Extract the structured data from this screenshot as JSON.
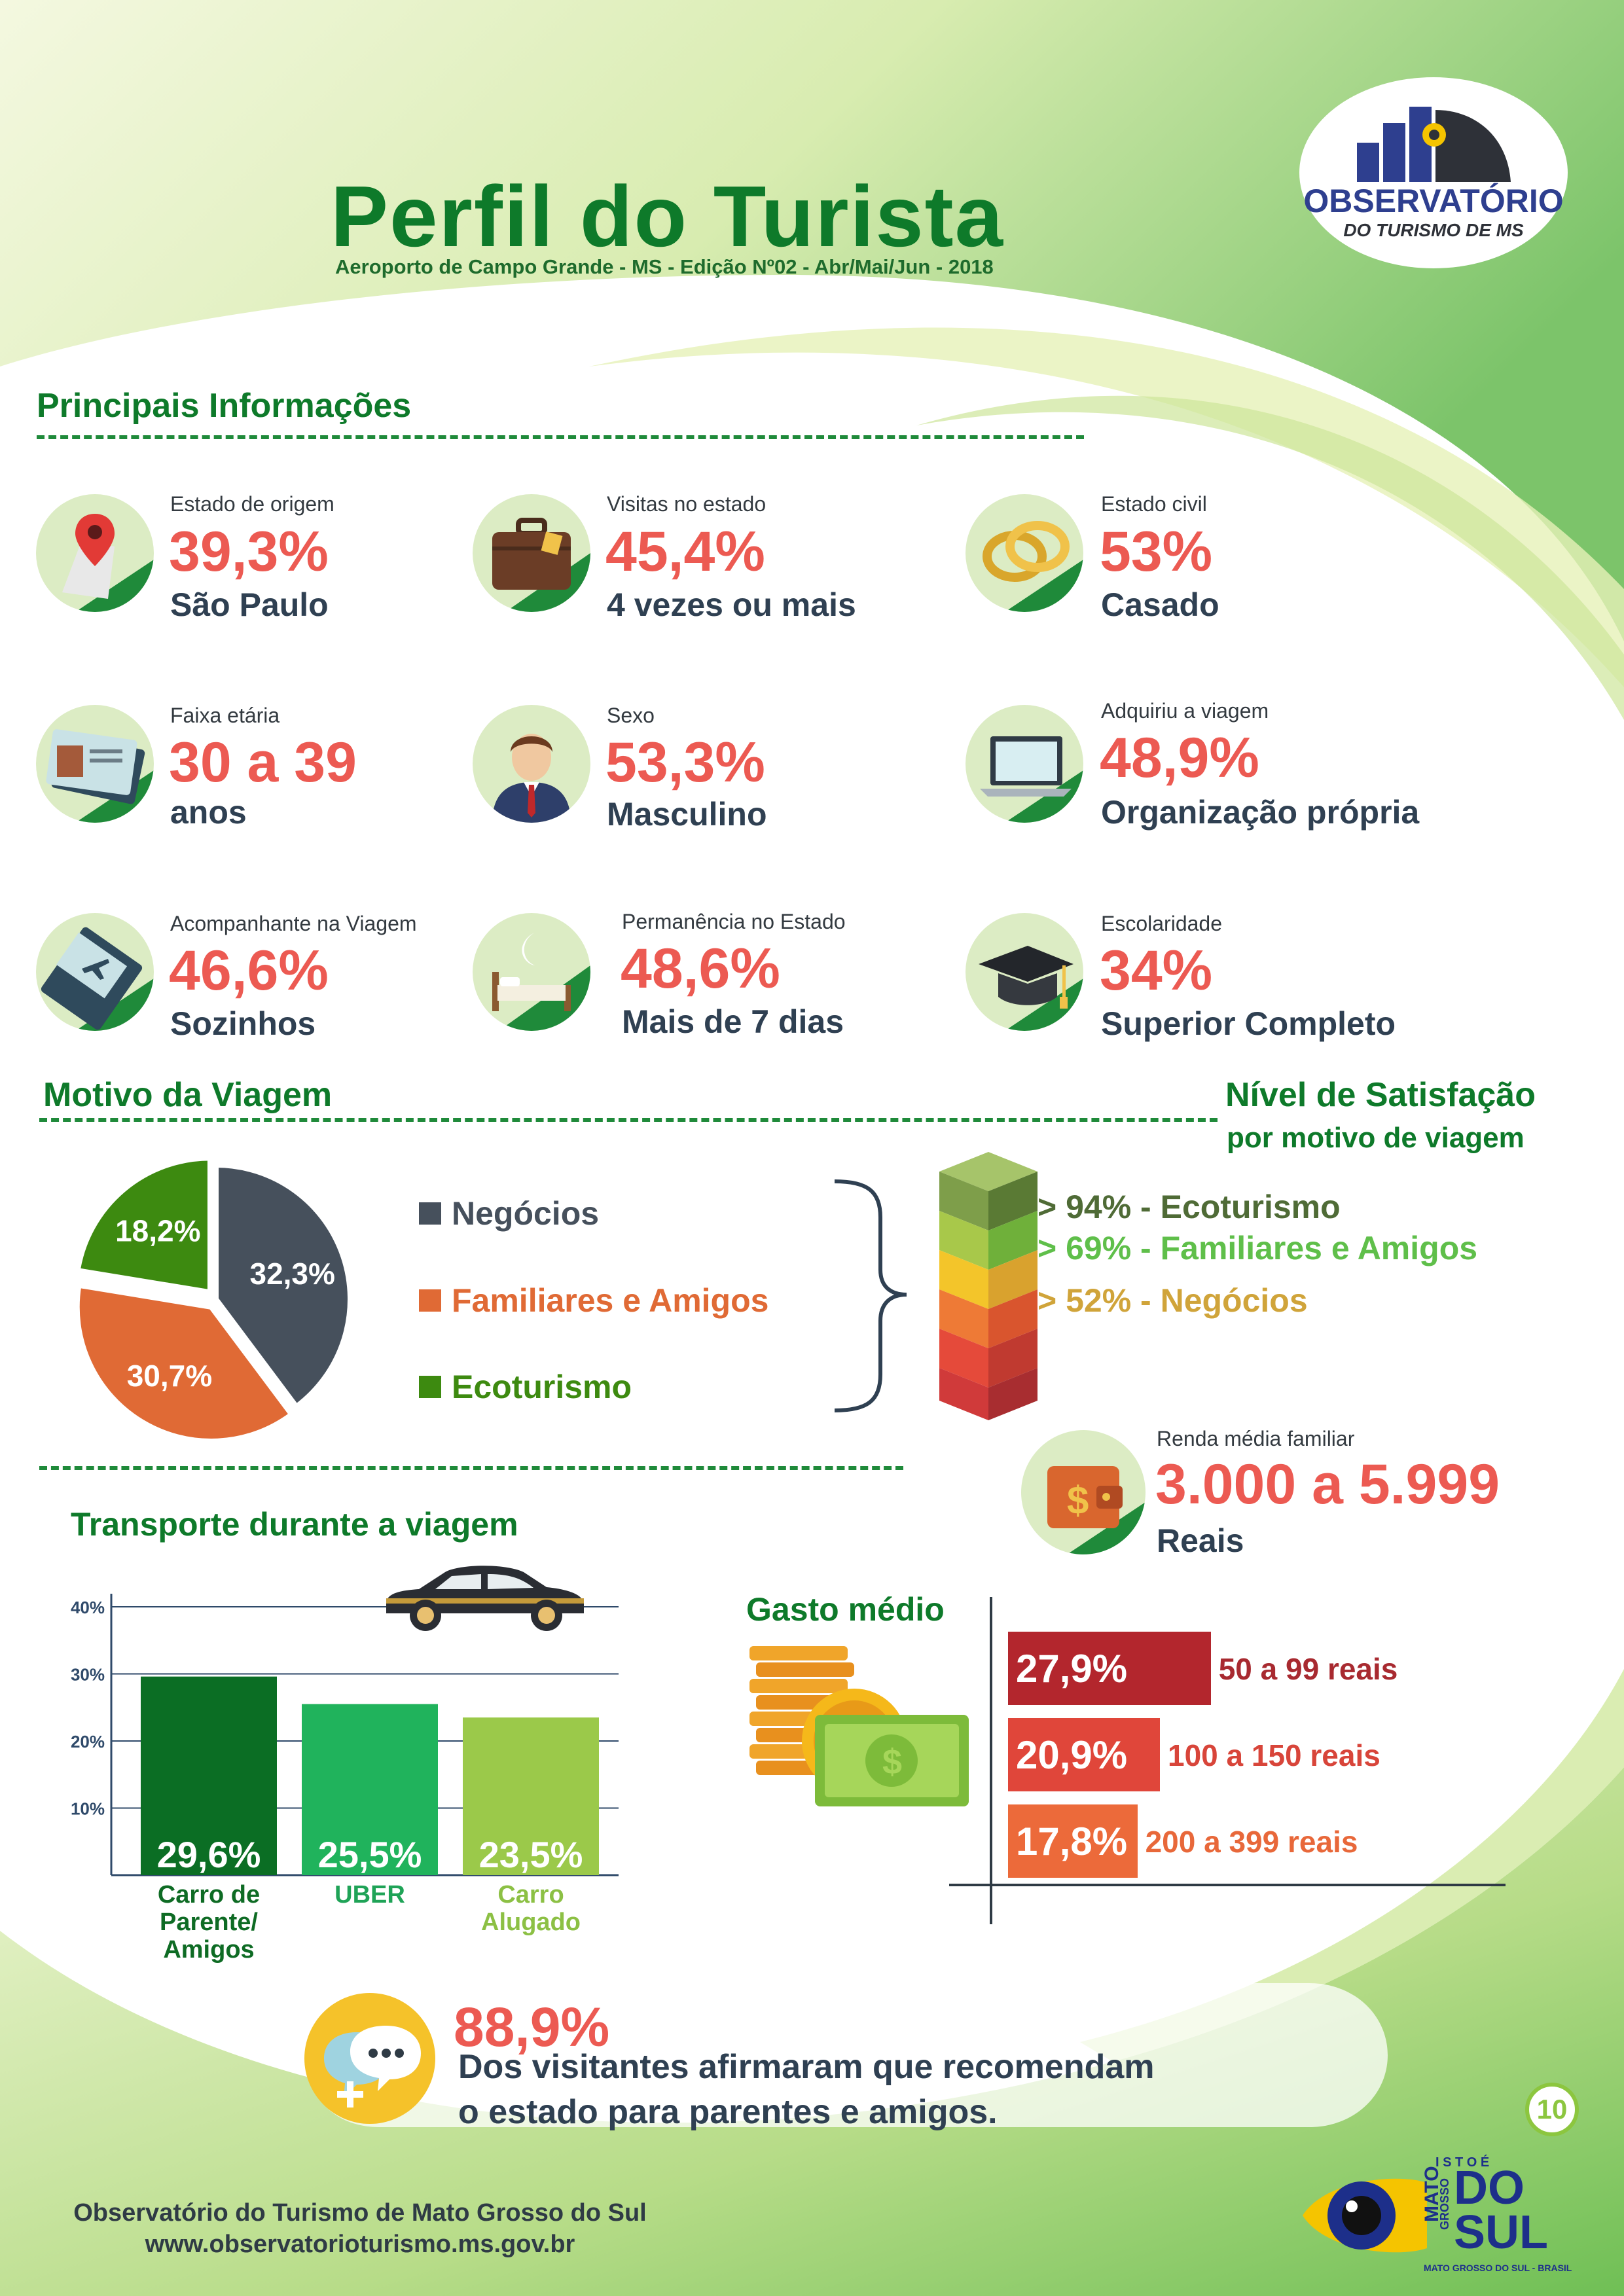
{
  "header": {
    "title": "Perfil do Turista",
    "subtitle": "Aeroporto de Campo Grande - MS - Edição Nº02 - Abr/Mai/Jun - 2018",
    "logo_line1": "OBSERVATÓRIO",
    "logo_line2": "DO TURISMO DE MS"
  },
  "principais": {
    "heading": "Principais Informações",
    "items": [
      {
        "label": "Estado de origem",
        "value": "39,3%",
        "desc": "São Paulo",
        "icon": "map-pin-icon"
      },
      {
        "label": "Visitas no estado",
        "value": "45,4%",
        "desc": "4 vezes ou mais",
        "icon": "suitcase-icon"
      },
      {
        "label": "Estado civil",
        "value": "53%",
        "desc": "Casado",
        "icon": "rings-icon"
      },
      {
        "label": "Faixa etária",
        "value": "30 a 39",
        "desc": "anos",
        "icon": "id-card-icon"
      },
      {
        "label": "Sexo",
        "value": "53,3%",
        "desc": "Masculino",
        "icon": "man-icon"
      },
      {
        "label": "Adquiriu a viagem",
        "value": "48,9%",
        "desc": "Organização própria",
        "icon": "laptop-icon"
      },
      {
        "label": "Acompanhante na Viagem",
        "value": "46,6%",
        "desc": "Sozinhos",
        "icon": "ticket-icon"
      },
      {
        "label": "Permanência no Estado",
        "value": "48,6%",
        "desc": "Mais de 7 dias",
        "icon": "bed-icon"
      },
      {
        "label": "Escolaridade",
        "value": "34%",
        "desc": "Superior Completo",
        "icon": "graduation-cap-icon"
      }
    ]
  },
  "motivo": {
    "heading": "Motivo da Viagem",
    "legend": [
      {
        "label": "Negócios",
        "color": "#46505c"
      },
      {
        "label": "Familiares e Amigos",
        "color": "#e06a35"
      },
      {
        "label": "Ecoturismo",
        "color": "#3d8a10"
      }
    ],
    "slice_labels": [
      "32,3%",
      "30,7%",
      "18,2%"
    ]
  },
  "satisfacao": {
    "heading": "Nível de Satisfação",
    "subheading": "por motivo de viagem",
    "rows": [
      {
        "text": "> 94% - Ecoturismo",
        "color": "#4f6b36"
      },
      {
        "text": "> 69% - Familiares e Amigos",
        "color": "#5fbf4a"
      },
      {
        "text": "> 52% - Negócios",
        "color": "#d0a43a"
      }
    ]
  },
  "renda": {
    "label": "Renda média familiar",
    "value": "3.000 a 5.999",
    "unit": "Reais"
  },
  "transporte": {
    "heading": "Transporte durante a viagem",
    "y_ticks": [
      "40%",
      "30%",
      "20%",
      "10%"
    ],
    "bars": [
      {
        "value_label": "29,6%",
        "name_lines": [
          "Carro de",
          "Parente/",
          "Amigos"
        ],
        "color": "#0b6e24",
        "label_color": "#0e6b24"
      },
      {
        "value_label": "25,5%",
        "name_lines": [
          "UBER"
        ],
        "color": "#20b35c",
        "label_color": "#1fa357"
      },
      {
        "value_label": "23,5%",
        "name_lines": [
          "Carro",
          "Alugado"
        ],
        "color": "#9bc94a",
        "label_color": "#8cc044"
      }
    ]
  },
  "chart_data": [
    {
      "type": "pie",
      "title": "Motivo da Viagem",
      "categories": [
        "Negócios",
        "Familiares e Amigos",
        "Ecoturismo"
      ],
      "values": [
        32.3,
        30.7,
        18.2
      ]
    },
    {
      "type": "bar",
      "title": "Transporte durante a viagem",
      "categories": [
        "Carro de Parente/ Amigos",
        "UBER",
        "Carro Alugado"
      ],
      "values": [
        29.6,
        25.5,
        23.5
      ],
      "ylim": [
        0,
        40
      ],
      "grid": true
    },
    {
      "type": "bar",
      "title": "Gasto médio",
      "categories": [
        "50 a 99 reais",
        "100 a 150 reais",
        "200 a 399 reais"
      ],
      "values": [
        27.9,
        20.9,
        17.8
      ]
    }
  ],
  "gasto": {
    "heading": "Gasto médio",
    "rows": [
      {
        "value_label": "27,9%",
        "label": "50 a 99 reais",
        "color": "#b3262d",
        "label_color": "#a82a30"
      },
      {
        "value_label": "20,9%",
        "label": "100 a 150 reais",
        "color": "#e0463a",
        "label_color": "#d8453a"
      },
      {
        "value_label": "17,8%",
        "label": "200 a 399 reais",
        "color": "#ec6a3a",
        "label_color": "#e8683a"
      }
    ]
  },
  "recomendacao": {
    "value": "88,9%",
    "line1": "Dos visitantes afirmaram que recomendam",
    "line2": "o estado para parentes e amigos."
  },
  "page_number": "10",
  "footer": {
    "line1": "Observatório do Turismo de Mato Grosso do Sul",
    "line2": "www.observatorioturismo.ms.gov.br",
    "brand_top": "I S T O  É",
    "brand_do": "DO",
    "brand_sul": "SUL",
    "brand_mato": "MATO",
    "brand_grosso": "GROSSO",
    "brand_bottom": "MATO GROSSO DO SUL - BRASIL"
  }
}
